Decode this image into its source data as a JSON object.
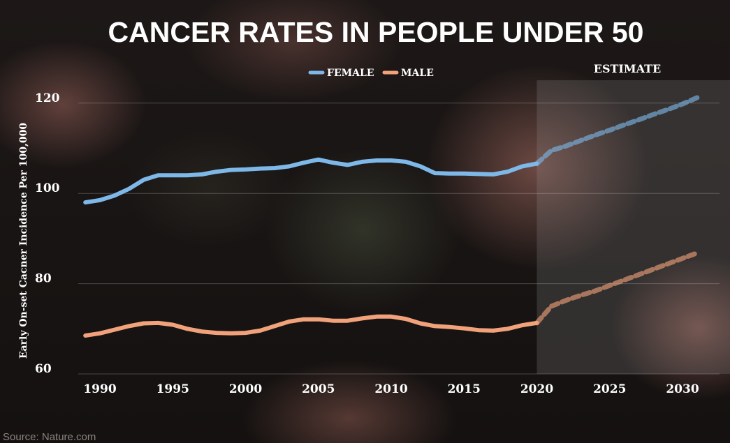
{
  "colors": {
    "female": "#7db8e8",
    "male": "#f1a27a",
    "estimate_region": "rgba(150,150,150,0.22)"
  },
  "source": "Source: Nature.com",
  "chart_data": {
    "type": "line",
    "title": "CANCER RATES IN PEOPLE UNDER 50",
    "xlabel": "",
    "ylabel": "Early On-set Cacner Incidence Per 100,000",
    "xlim": [
      1988,
      2032
    ],
    "ylim": [
      58,
      125
    ],
    "xticks": [
      "1990",
      "1995",
      "2000",
      "2005",
      "2010",
      "2015",
      "2020",
      "2025",
      "2030"
    ],
    "yticks": [
      "60",
      "80",
      "100",
      "120"
    ],
    "grid": true,
    "legend_position": "top-center",
    "estimate_label": "ESTIMATE",
    "estimate_start": 2020,
    "series": [
      {
        "name": "FEMALE",
        "color": "#7db8e8",
        "actual": [
          [
            1989,
            98.0
          ],
          [
            1990,
            98.5
          ],
          [
            1991,
            99.5
          ],
          [
            1992,
            101.0
          ],
          [
            1993,
            103.0
          ],
          [
            1994,
            104.0
          ],
          [
            1995,
            104.0
          ],
          [
            1996,
            104.0
          ],
          [
            1997,
            104.2
          ],
          [
            1998,
            104.8
          ],
          [
            1999,
            105.2
          ],
          [
            2000,
            105.3
          ],
          [
            2001,
            105.5
          ],
          [
            2002,
            105.6
          ],
          [
            2003,
            106.0
          ],
          [
            2004,
            106.8
          ],
          [
            2005,
            107.5
          ],
          [
            2006,
            106.8
          ],
          [
            2007,
            106.3
          ],
          [
            2008,
            107.0
          ],
          [
            2009,
            107.3
          ],
          [
            2010,
            107.3
          ],
          [
            2011,
            107.0
          ],
          [
            2012,
            106.0
          ],
          [
            2013,
            104.5
          ],
          [
            2014,
            104.4
          ],
          [
            2015,
            104.4
          ],
          [
            2016,
            104.3
          ],
          [
            2017,
            104.2
          ],
          [
            2018,
            104.8
          ],
          [
            2019,
            106.0
          ],
          [
            2020,
            106.6
          ]
        ],
        "estimate": [
          [
            2020,
            106.6
          ],
          [
            2021,
            109.5
          ],
          [
            2022,
            110.5
          ],
          [
            2023,
            111.7
          ],
          [
            2024,
            112.9
          ],
          [
            2025,
            114.0
          ],
          [
            2026,
            115.2
          ],
          [
            2027,
            116.3
          ],
          [
            2028,
            117.5
          ],
          [
            2029,
            118.6
          ],
          [
            2030,
            119.8
          ],
          [
            2031,
            121.2
          ]
        ]
      },
      {
        "name": "MALE",
        "color": "#f1a27a",
        "actual": [
          [
            1989,
            68.5
          ],
          [
            1990,
            69.0
          ],
          [
            1991,
            69.8
          ],
          [
            1992,
            70.6
          ],
          [
            1993,
            71.2
          ],
          [
            1994,
            71.3
          ],
          [
            1995,
            70.9
          ],
          [
            1996,
            70.0
          ],
          [
            1997,
            69.4
          ],
          [
            1998,
            69.1
          ],
          [
            1999,
            69.0
          ],
          [
            2000,
            69.1
          ],
          [
            2001,
            69.6
          ],
          [
            2002,
            70.6
          ],
          [
            2003,
            71.6
          ],
          [
            2004,
            72.1
          ],
          [
            2005,
            72.1
          ],
          [
            2006,
            71.8
          ],
          [
            2007,
            71.8
          ],
          [
            2008,
            72.3
          ],
          [
            2009,
            72.7
          ],
          [
            2010,
            72.7
          ],
          [
            2011,
            72.2
          ],
          [
            2012,
            71.2
          ],
          [
            2013,
            70.6
          ],
          [
            2014,
            70.4
          ],
          [
            2015,
            70.1
          ],
          [
            2016,
            69.7
          ],
          [
            2017,
            69.6
          ],
          [
            2018,
            70.0
          ],
          [
            2019,
            70.8
          ],
          [
            2020,
            71.3
          ]
        ],
        "estimate": [
          [
            2020,
            71.3
          ],
          [
            2021,
            75.0
          ],
          [
            2022,
            76.3
          ],
          [
            2023,
            77.4
          ],
          [
            2024,
            78.4
          ],
          [
            2025,
            79.6
          ],
          [
            2026,
            80.8
          ],
          [
            2027,
            82.0
          ],
          [
            2028,
            83.2
          ],
          [
            2029,
            84.4
          ],
          [
            2030,
            85.6
          ],
          [
            2031,
            86.8
          ]
        ]
      }
    ]
  }
}
